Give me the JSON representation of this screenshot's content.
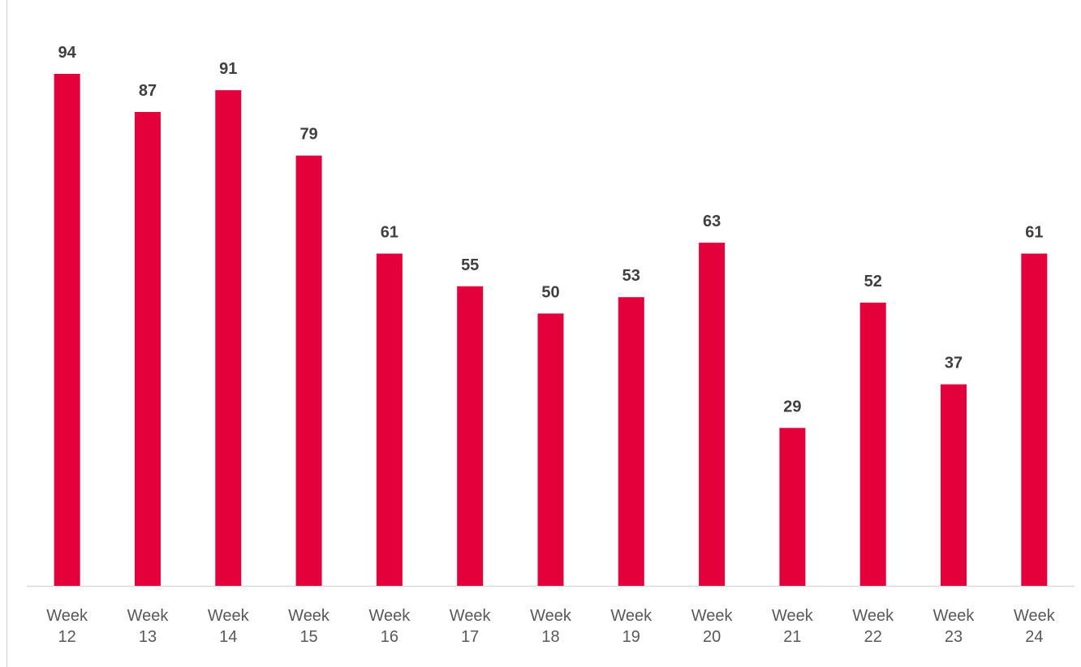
{
  "chart_data": {
    "type": "bar",
    "categories": [
      "Week 12",
      "Week 13",
      "Week 14",
      "Week 15",
      "Week 16",
      "Week 17",
      "Week 18",
      "Week 19",
      "Week 20",
      "Week 21",
      "Week 22",
      "Week 23",
      "Week 24"
    ],
    "values": [
      94,
      87,
      91,
      79,
      61,
      55,
      50,
      53,
      63,
      29,
      52,
      37,
      61
    ],
    "color": "#e4003b"
  }
}
